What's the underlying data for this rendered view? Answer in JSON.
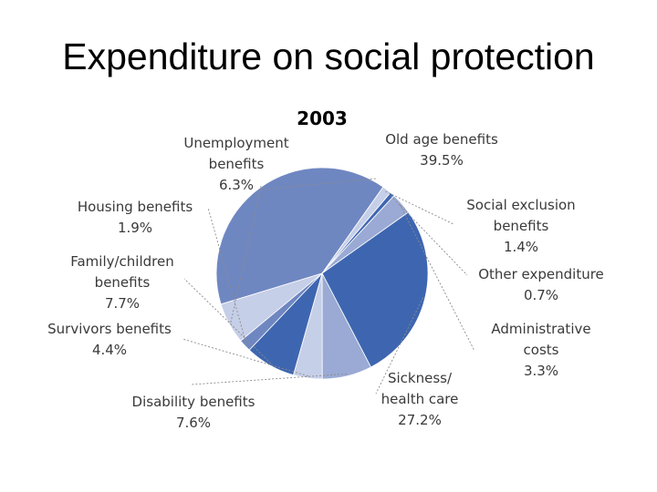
{
  "slide": {
    "title": "Expenditure on social protection"
  },
  "colors": {
    "dark": "#3e66b0",
    "medium": "#6f87c1",
    "light": "#9aaad4",
    "pale": "#c6cfe8",
    "leader": "#8a8a8a",
    "year": "#3b73b9"
  },
  "chart_data": {
    "type": "pie",
    "title": "2003",
    "unit": "%",
    "slices": [
      {
        "name": "Old age benefits",
        "lines": [
          "Old age benefits",
          "39.5%"
        ],
        "value": 39.5,
        "color_key": "medium"
      },
      {
        "name": "Social exclusion benefits",
        "lines": [
          "Social exclusion",
          "benefits",
          "1.4%"
        ],
        "value": 1.4,
        "color_key": "pale"
      },
      {
        "name": "Other expenditure",
        "lines": [
          "Other expenditure",
          "0.7%"
        ],
        "value": 0.7,
        "color_key": "dark"
      },
      {
        "name": "Administrative costs",
        "lines": [
          "Administrative",
          "costs",
          "3.3%"
        ],
        "value": 3.3,
        "color_key": "light"
      },
      {
        "name": "Sickness/health care",
        "lines": [
          "Sickness/",
          "health care",
          "27.2%"
        ],
        "value": 27.2,
        "color_key": "dark"
      },
      {
        "name": "Disability benefits",
        "lines": [
          "Disability benefits",
          "7.6%"
        ],
        "value": 7.6,
        "color_key": "light"
      },
      {
        "name": "Survivors benefits",
        "lines": [
          "Survivors benefits",
          "4.4%"
        ],
        "value": 4.4,
        "color_key": "pale"
      },
      {
        "name": "Family/children benefits",
        "lines": [
          "Family/children",
          "benefits",
          "7.7%"
        ],
        "value": 7.7,
        "color_key": "dark"
      },
      {
        "name": "Housing benefits",
        "lines": [
          "Housing benefits",
          "1.9%"
        ],
        "value": 1.9,
        "color_key": "medium"
      },
      {
        "name": "Unemployment benefits",
        "lines": [
          "Unemployment",
          "benefits",
          "6.3%"
        ],
        "value": 6.3,
        "color_key": "pale"
      }
    ]
  }
}
